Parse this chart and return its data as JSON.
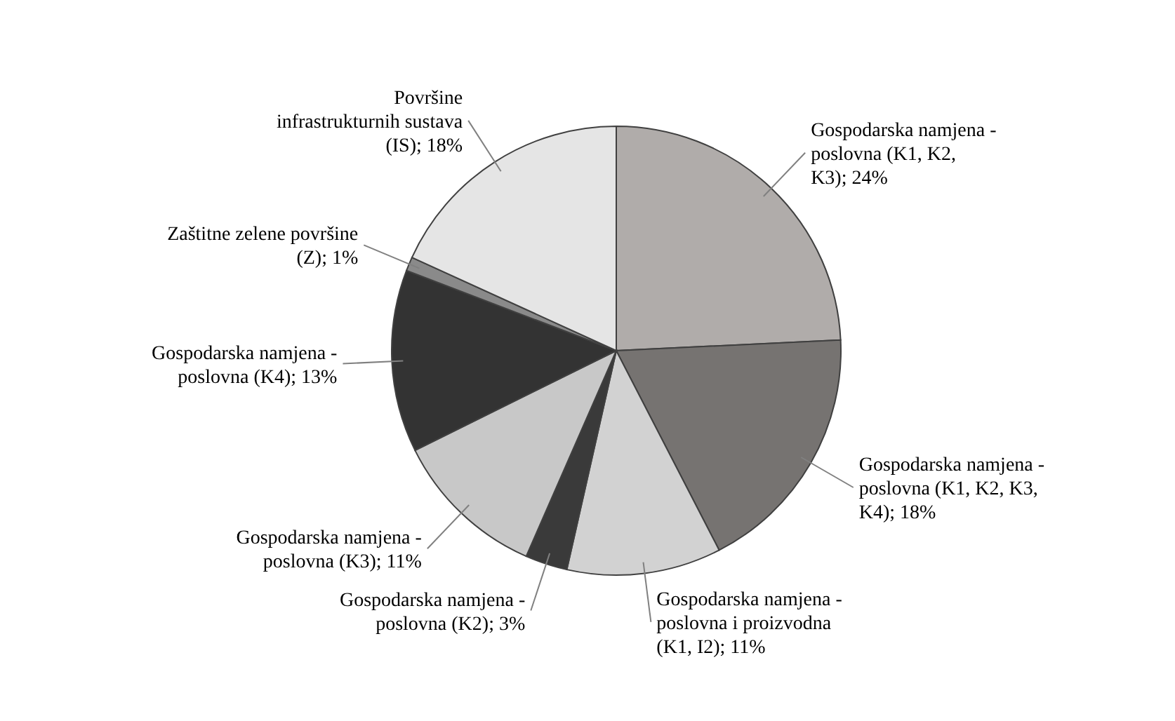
{
  "chart_data": {
    "type": "pie",
    "categories": [
      "Gospodarska namjena - poslovna (K1, K2, K3)",
      "Gospodarska namjena - poslovna (K1, K2, K3, K4)",
      "Gospodarska namjena - poslovna i proizvodna (K1, I2)",
      "Gospodarska namjena - poslovna (K2)",
      "Gospodarska namjena - poslovna (K3)",
      "Gospodarska namjena - poslovna (K4)",
      "Zaštitne zelene površine (Z)",
      "Površine infrastrukturnih sustava (IS)"
    ],
    "values": [
      24,
      18,
      11,
      3,
      11,
      13,
      1,
      18
    ],
    "value_labels": [
      "24%",
      "18%",
      "11%",
      "3%",
      "11%",
      "13%",
      "1%",
      "18%"
    ],
    "colors": [
      "#b0acaa",
      "#767371",
      "#d2d2d2",
      "#3a3a3a",
      "#c8c8c8",
      "#333333",
      "#8a8a8a",
      "#e5e5e5"
    ]
  }
}
